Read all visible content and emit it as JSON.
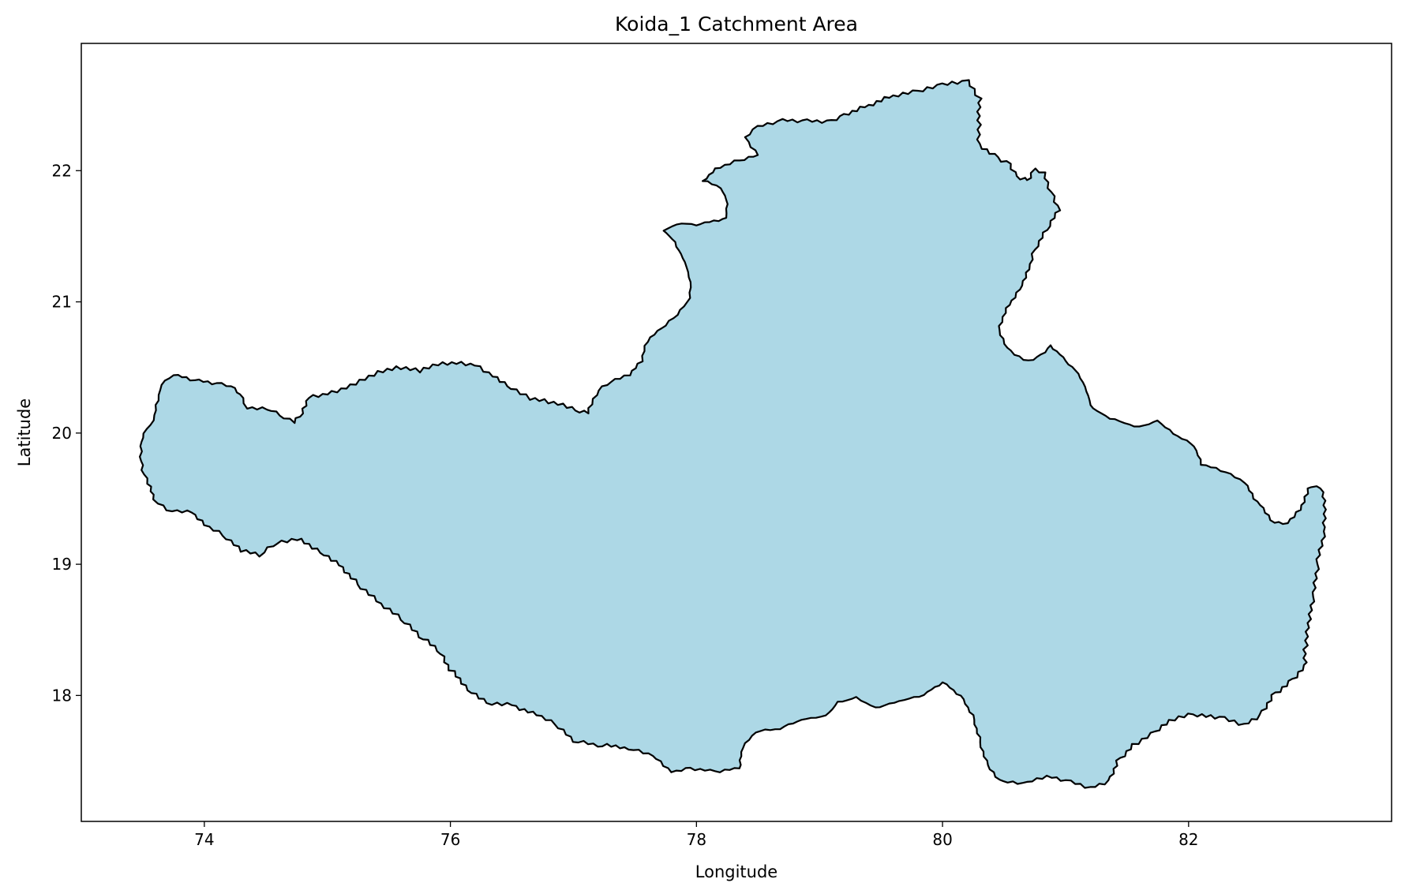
{
  "chart_data": {
    "type": "map",
    "title": "Koida_1 Catchment Area",
    "xlabel": "Longitude",
    "ylabel": "Latitude",
    "xlim": [
      73.0,
      83.65
    ],
    "ylim": [
      17.04,
      22.97
    ],
    "xticks": [
      74,
      76,
      78,
      80,
      82
    ],
    "yticks": [
      18,
      19,
      20,
      21,
      22
    ],
    "grid": false,
    "fill_color": "#add8e6",
    "edge_color": "#000000",
    "polygon": [
      [
        73.48,
        19.9
      ],
      [
        73.5,
        20.0
      ],
      [
        73.58,
        20.1
      ],
      [
        73.62,
        20.25
      ],
      [
        73.65,
        20.37
      ],
      [
        73.75,
        20.44
      ],
      [
        73.92,
        20.4
      ],
      [
        74.1,
        20.38
      ],
      [
        74.22,
        20.36
      ],
      [
        74.3,
        20.3
      ],
      [
        74.35,
        20.2
      ],
      [
        74.55,
        20.18
      ],
      [
        74.65,
        20.12
      ],
      [
        74.73,
        20.08
      ],
      [
        74.8,
        20.15
      ],
      [
        74.85,
        20.27
      ],
      [
        75.0,
        20.3
      ],
      [
        75.15,
        20.35
      ],
      [
        75.3,
        20.42
      ],
      [
        75.45,
        20.48
      ],
      [
        75.6,
        20.5
      ],
      [
        75.75,
        20.47
      ],
      [
        75.9,
        20.52
      ],
      [
        76.05,
        20.53
      ],
      [
        76.2,
        20.52
      ],
      [
        76.35,
        20.44
      ],
      [
        76.5,
        20.35
      ],
      [
        76.65,
        20.27
      ],
      [
        76.8,
        20.24
      ],
      [
        76.95,
        20.2
      ],
      [
        77.05,
        20.16
      ],
      [
        77.12,
        20.15
      ],
      [
        77.15,
        20.22
      ],
      [
        77.2,
        20.33
      ],
      [
        77.3,
        20.4
      ],
      [
        77.45,
        20.45
      ],
      [
        77.55,
        20.55
      ],
      [
        77.6,
        20.7
      ],
      [
        77.75,
        20.82
      ],
      [
        77.85,
        20.9
      ],
      [
        77.95,
        21.03
      ],
      [
        77.95,
        21.15
      ],
      [
        77.9,
        21.3
      ],
      [
        77.82,
        21.45
      ],
      [
        77.73,
        21.55
      ],
      [
        77.88,
        21.6
      ],
      [
        78.0,
        21.58
      ],
      [
        78.25,
        21.64
      ],
      [
        78.25,
        21.78
      ],
      [
        78.2,
        21.87
      ],
      [
        78.05,
        21.92
      ],
      [
        78.15,
        22.02
      ],
      [
        78.35,
        22.08
      ],
      [
        78.5,
        22.12
      ],
      [
        78.4,
        22.25
      ],
      [
        78.5,
        22.33
      ],
      [
        78.7,
        22.38
      ],
      [
        78.9,
        22.38
      ],
      [
        79.1,
        22.38
      ],
      [
        79.2,
        22.43
      ],
      [
        79.4,
        22.5
      ],
      [
        79.6,
        22.57
      ],
      [
        79.8,
        22.6
      ],
      [
        80.0,
        22.65
      ],
      [
        80.2,
        22.68
      ],
      [
        80.3,
        22.55
      ],
      [
        80.3,
        22.35
      ],
      [
        80.3,
        22.2
      ],
      [
        80.45,
        22.1
      ],
      [
        80.55,
        22.05
      ],
      [
        80.6,
        21.95
      ],
      [
        80.7,
        21.92
      ],
      [
        80.75,
        22.0
      ],
      [
        80.82,
        21.98
      ],
      [
        80.9,
        21.8
      ],
      [
        80.95,
        21.7
      ],
      [
        80.85,
        21.55
      ],
      [
        80.75,
        21.4
      ],
      [
        80.7,
        21.25
      ],
      [
        80.62,
        21.1
      ],
      [
        80.5,
        20.92
      ],
      [
        80.45,
        20.78
      ],
      [
        80.55,
        20.62
      ],
      [
        80.7,
        20.55
      ],
      [
        80.8,
        20.6
      ],
      [
        80.88,
        20.67
      ],
      [
        81.0,
        20.55
      ],
      [
        81.1,
        20.45
      ],
      [
        81.15,
        20.35
      ],
      [
        81.22,
        20.18
      ],
      [
        81.4,
        20.1
      ],
      [
        81.6,
        20.05
      ],
      [
        81.75,
        20.1
      ],
      [
        81.88,
        20.0
      ],
      [
        82.05,
        19.9
      ],
      [
        82.1,
        19.76
      ],
      [
        82.3,
        19.7
      ],
      [
        82.45,
        19.62
      ],
      [
        82.58,
        19.45
      ],
      [
        82.7,
        19.32
      ],
      [
        82.8,
        19.32
      ],
      [
        82.9,
        19.42
      ],
      [
        83.0,
        19.6
      ],
      [
        83.08,
        19.58
      ],
      [
        83.1,
        19.45
      ],
      [
        83.1,
        19.25
      ],
      [
        83.05,
        19.0
      ],
      [
        83.02,
        18.75
      ],
      [
        82.98,
        18.55
      ],
      [
        82.95,
        18.35
      ],
      [
        82.95,
        18.22
      ],
      [
        82.82,
        18.1
      ],
      [
        82.68,
        18.0
      ],
      [
        82.58,
        17.85
      ],
      [
        82.45,
        17.78
      ],
      [
        82.25,
        17.83
      ],
      [
        82.0,
        17.85
      ],
      [
        81.85,
        17.8
      ],
      [
        81.7,
        17.7
      ],
      [
        81.55,
        17.62
      ],
      [
        81.42,
        17.5
      ],
      [
        81.35,
        17.35
      ],
      [
        81.2,
        17.3
      ],
      [
        81.0,
        17.35
      ],
      [
        80.85,
        17.38
      ],
      [
        80.65,
        17.32
      ],
      [
        80.45,
        17.35
      ],
      [
        80.35,
        17.5
      ],
      [
        80.3,
        17.68
      ],
      [
        80.25,
        17.85
      ],
      [
        80.15,
        18.0
      ],
      [
        80.0,
        18.1
      ],
      [
        79.85,
        18.0
      ],
      [
        79.65,
        17.95
      ],
      [
        79.45,
        17.9
      ],
      [
        79.3,
        17.98
      ],
      [
        79.15,
        17.95
      ],
      [
        79.05,
        17.85
      ],
      [
        78.85,
        17.82
      ],
      [
        78.68,
        17.75
      ],
      [
        78.48,
        17.72
      ],
      [
        78.38,
        17.6
      ],
      [
        78.35,
        17.44
      ],
      [
        78.15,
        17.42
      ],
      [
        77.95,
        17.45
      ],
      [
        77.8,
        17.42
      ],
      [
        77.65,
        17.55
      ],
      [
        77.45,
        17.6
      ],
      [
        77.2,
        17.62
      ],
      [
        77.0,
        17.65
      ],
      [
        76.85,
        17.78
      ],
      [
        76.7,
        17.85
      ],
      [
        76.5,
        17.93
      ],
      [
        76.3,
        17.95
      ],
      [
        76.15,
        18.05
      ],
      [
        76.0,
        18.2
      ],
      [
        75.9,
        18.35
      ],
      [
        75.75,
        18.45
      ],
      [
        75.6,
        18.58
      ],
      [
        75.4,
        18.72
      ],
      [
        75.25,
        18.85
      ],
      [
        75.1,
        19.0
      ],
      [
        74.95,
        19.1
      ],
      [
        74.75,
        19.2
      ],
      [
        74.55,
        19.15
      ],
      [
        74.45,
        19.07
      ],
      [
        74.3,
        19.1
      ],
      [
        74.15,
        19.22
      ],
      [
        74.0,
        19.3
      ],
      [
        73.9,
        19.4
      ],
      [
        73.7,
        19.42
      ],
      [
        73.6,
        19.5
      ],
      [
        73.55,
        19.62
      ],
      [
        73.5,
        19.72
      ],
      [
        73.48,
        19.82
      ]
    ]
  }
}
